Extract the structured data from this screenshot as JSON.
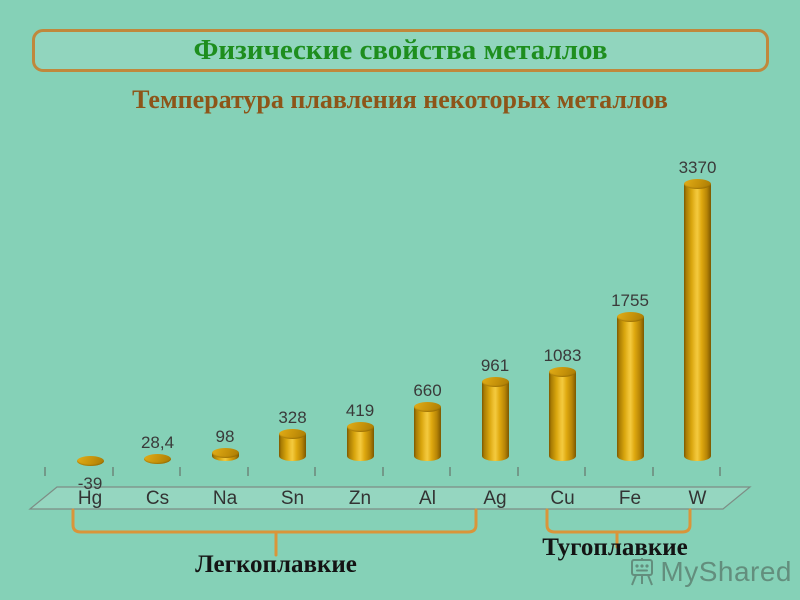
{
  "page": {
    "background": "#85d1b7"
  },
  "header": {
    "title": "Физические свойства металлов",
    "title_color": "#1e8e1e",
    "box_border_color": "#c0883c",
    "subtitle": "Температура плавления некоторых металлов",
    "subtitle_color": "#8d5519"
  },
  "chart_data": {
    "type": "bar",
    "style": "3d-cylinder",
    "title": "Температура плавления некоторых металлов",
    "categories": [
      "Hg",
      "Cs",
      "Na",
      "Sn",
      "Zn",
      "Al",
      "Ag",
      "Cu",
      "Fe",
      "W"
    ],
    "values": [
      -39,
      28.4,
      98,
      328,
      419,
      660,
      961,
      1083,
      1755,
      3370
    ],
    "value_labels": [
      "-39",
      "28,4",
      "98",
      "328",
      "419",
      "660",
      "961",
      "1083",
      "1755",
      "3370"
    ],
    "ylim": [
      0,
      3370
    ],
    "grid": false,
    "legend": false,
    "bar_color": "#e3a50f",
    "bracket_color": "#d9953a",
    "groups": [
      {
        "label": "Легкоплавкие",
        "from": "Hg",
        "to": "Ag"
      },
      {
        "label": "Тугоплавкие",
        "from": "Cu",
        "to": "W"
      }
    ]
  },
  "watermark": {
    "text": "MyShared",
    "icon": "presentation-board-icon"
  }
}
